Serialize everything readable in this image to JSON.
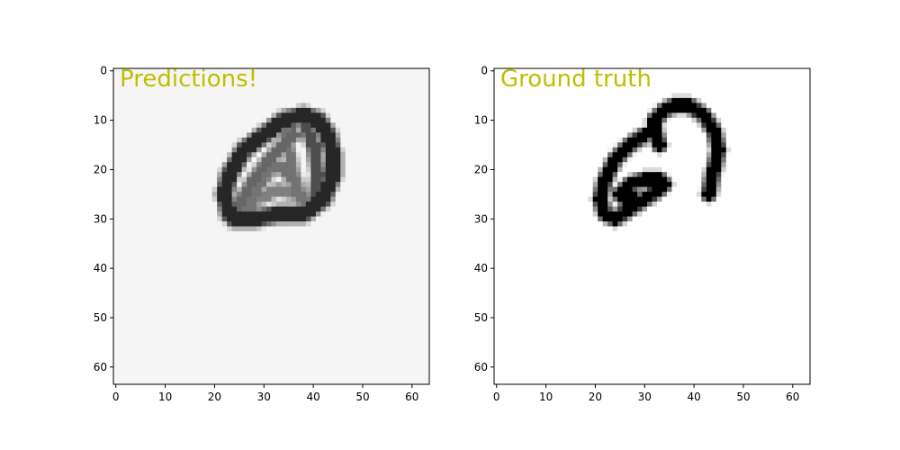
{
  "chart_data": [
    {
      "type": "heatmap",
      "title": "Predictions!",
      "title_color": "#bfbf00",
      "colormap": "gray_r",
      "background_value": 0.04,
      "xlim": [
        -0.5,
        63.5
      ],
      "ylim": [
        63.5,
        -0.5
      ],
      "x_ticks": [
        0,
        10,
        20,
        30,
        40,
        50,
        60
      ],
      "y_ticks": [
        0,
        10,
        20,
        30,
        40,
        50,
        60
      ],
      "x_tick_labels": [
        "0",
        "10",
        "20",
        "30",
        "40",
        "50",
        "60"
      ],
      "y_tick_labels": [
        "0",
        "10",
        "20",
        "30",
        "40",
        "50",
        "60"
      ],
      "grid": false,
      "strokes": [
        {
          "points": [
            [
              23,
              29
            ],
            [
              22,
              25
            ],
            [
              23,
              21
            ],
            [
              26,
              16
            ],
            [
              30,
              13
            ],
            [
              34,
              10
            ],
            [
              38,
              9
            ],
            [
              41,
              10
            ],
            [
              43,
              13
            ],
            [
              44,
              17
            ],
            [
              44,
              21
            ],
            [
              42,
              26
            ],
            [
              38,
              29
            ],
            [
              33,
              29
            ],
            [
              28,
              30
            ],
            [
              24,
              30
            ]
          ],
          "width": 1.3,
          "intensity": 0.85
        },
        {
          "points": [
            [
              25,
              27
            ],
            [
              28,
              22
            ],
            [
              31,
              18
            ],
            [
              34,
              15
            ],
            [
              36,
              13
            ]
          ],
          "width": 1.0,
          "intensity": 0.6
        },
        {
          "points": [
            [
              27,
              28
            ],
            [
              29,
              23
            ],
            [
              32,
              19
            ],
            [
              34,
              20
            ],
            [
              36,
              22
            ],
            [
              37,
              25
            ]
          ],
          "width": 1.0,
          "intensity": 0.55
        },
        {
          "points": [
            [
              34,
              10
            ],
            [
              35,
              16
            ],
            [
              36,
              21
            ],
            [
              38,
              27
            ]
          ],
          "width": 0.9,
          "intensity": 0.55
        },
        {
          "points": [
            [
              38,
              10
            ],
            [
              40,
              15
            ],
            [
              41,
              21
            ],
            [
              40,
              27
            ]
          ],
          "width": 1.0,
          "intensity": 0.7
        },
        {
          "points": [
            [
              26,
              26
            ],
            [
              29,
              26
            ],
            [
              33,
              24
            ],
            [
              36,
              25
            ]
          ],
          "width": 0.9,
          "intensity": 0.5
        }
      ]
    },
    {
      "type": "heatmap",
      "title": "Ground truth",
      "title_color": "#bfbf00",
      "colormap": "gray_r",
      "background_value": 0.0,
      "xlim": [
        -0.5,
        63.5
      ],
      "ylim": [
        63.5,
        -0.5
      ],
      "x_ticks": [
        0,
        10,
        20,
        30,
        40,
        50,
        60
      ],
      "y_ticks": [
        0,
        10,
        20,
        30,
        40,
        50,
        60
      ],
      "x_tick_labels": [
        "0",
        "10",
        "20",
        "30",
        "40",
        "50",
        "60"
      ],
      "y_tick_labels": [
        "0",
        "10",
        "20",
        "30",
        "40",
        "50",
        "60"
      ],
      "grid": false,
      "strokes": [
        {
          "points": [
            [
              33,
              15
            ],
            [
              32,
              12
            ],
            [
              32,
              10
            ],
            [
              34,
              8
            ],
            [
              36,
              7
            ],
            [
              39,
              7
            ],
            [
              42,
              9
            ],
            [
              44,
              12
            ],
            [
              45,
              16
            ],
            [
              44,
              20
            ],
            [
              43,
              25
            ]
          ],
          "width": 1.0,
          "intensity": 1.0
        },
        {
          "points": [
            [
              30,
              13
            ],
            [
              27,
              15
            ],
            [
              24,
              18
            ],
            [
              22,
              22
            ],
            [
              21,
              26
            ],
            [
              22,
              29
            ],
            [
              24,
              30
            ],
            [
              27,
              28
            ],
            [
              30,
              26
            ],
            [
              33,
              24
            ],
            [
              34,
              23
            ],
            [
              33,
              22
            ],
            [
              30,
              22
            ],
            [
              27,
              23
            ],
            [
              25,
              25
            ],
            [
              26,
              26
            ],
            [
              28,
              26
            ]
          ],
          "width": 1.0,
          "intensity": 1.0
        }
      ]
    }
  ]
}
